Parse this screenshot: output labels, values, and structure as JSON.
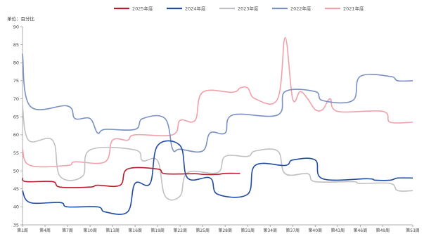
{
  "chart_data": {
    "type": "line",
    "unit_label": "单位：百分比",
    "legend_position": "top-center",
    "grid": false,
    "ylim": [
      35,
      90
    ],
    "yticks": [
      35,
      40,
      45,
      50,
      55,
      60,
      65,
      70,
      75,
      80,
      85,
      90
    ],
    "xlim": [
      1,
      53
    ],
    "xticks": [
      {
        "week": 1,
        "label": "第1周"
      },
      {
        "week": 4,
        "label": "第4周"
      },
      {
        "week": 7,
        "label": "第7周"
      },
      {
        "week": 10,
        "label": "第10周"
      },
      {
        "week": 13,
        "label": "第13周"
      },
      {
        "week": 16,
        "label": "第16周"
      },
      {
        "week": 19,
        "label": "第19周"
      },
      {
        "week": 22,
        "label": "第22周"
      },
      {
        "week": 25,
        "label": "第25周"
      },
      {
        "week": 28,
        "label": "第28周"
      },
      {
        "week": 31,
        "label": "第31周"
      },
      {
        "week": 34,
        "label": "第34周"
      },
      {
        "week": 37,
        "label": "第37周"
      },
      {
        "week": 40,
        "label": "第40周"
      },
      {
        "week": 43,
        "label": "第43周"
      },
      {
        "week": 46,
        "label": "第46周"
      },
      {
        "week": 49,
        "label": "第49周"
      },
      {
        "week": 53,
        "label": "第53周"
      }
    ],
    "series": [
      {
        "name": "2025年度",
        "color": "#b51d2a",
        "width": 1.6,
        "points": [
          [
            1,
            48
          ],
          [
            1.5,
            47
          ],
          [
            5,
            47
          ],
          [
            6,
            45.5
          ],
          [
            10,
            45.5
          ],
          [
            11,
            46
          ],
          [
            14,
            46
          ],
          [
            15,
            50.5
          ],
          [
            19,
            50.5
          ],
          [
            20,
            49.2
          ],
          [
            24,
            49.2
          ],
          [
            25,
            49
          ],
          [
            27,
            49
          ],
          [
            28,
            49.3
          ],
          [
            30,
            49.3
          ]
        ]
      },
      {
        "name": "2024年度",
        "color": "#1f4ba0",
        "width": 1.6,
        "points": [
          [
            1,
            44.5
          ],
          [
            2,
            41.2
          ],
          [
            6,
            41.2
          ],
          [
            7,
            40
          ],
          [
            11,
            40
          ],
          [
            12,
            38.6
          ],
          [
            15,
            38.6
          ],
          [
            16,
            46.5
          ],
          [
            18,
            46.5
          ],
          [
            19,
            57
          ],
          [
            22,
            57
          ],
          [
            23,
            48
          ],
          [
            26,
            48
          ],
          [
            27,
            43.5
          ],
          [
            31,
            43.5
          ],
          [
            32,
            51.5
          ],
          [
            36,
            51.5
          ],
          [
            37,
            53
          ],
          [
            40,
            53
          ],
          [
            41,
            47.8
          ],
          [
            47,
            47.8
          ],
          [
            48,
            47.4
          ],
          [
            50,
            47.4
          ],
          [
            51,
            48
          ],
          [
            53,
            48
          ]
        ]
      },
      {
        "name": "2023年度",
        "color": "#c0c0c4",
        "width": 1.6,
        "points": [
          [
            1,
            68
          ],
          [
            1.8,
            58.5
          ],
          [
            5,
            58.5
          ],
          [
            6,
            48.5
          ],
          [
            9,
            48.5
          ],
          [
            10,
            55.8
          ],
          [
            16,
            55.8
          ],
          [
            17,
            52.8
          ],
          [
            19,
            52.8
          ],
          [
            20,
            43
          ],
          [
            22,
            43
          ],
          [
            23,
            49.5
          ],
          [
            27,
            49.5
          ],
          [
            28,
            54
          ],
          [
            31,
            54
          ],
          [
            32,
            55.5
          ],
          [
            35,
            55.5
          ],
          [
            36,
            49.2
          ],
          [
            39,
            49.2
          ],
          [
            40,
            47
          ],
          [
            45,
            47
          ],
          [
            46,
            46.5
          ],
          [
            50,
            46.5
          ],
          [
            51,
            44.5
          ],
          [
            53,
            44.5
          ]
        ]
      },
      {
        "name": "2022年度",
        "color": "#7a8fc4",
        "width": 1.6,
        "points": [
          [
            1,
            82.5
          ],
          [
            2,
            68
          ],
          [
            7,
            68
          ],
          [
            8,
            64.5
          ],
          [
            10,
            64.5
          ],
          [
            11,
            60.5
          ],
          [
            12,
            61.5
          ],
          [
            16,
            61.5
          ],
          [
            17,
            64.5
          ],
          [
            20,
            64.5
          ],
          [
            21,
            56
          ],
          [
            22,
            56
          ],
          [
            25,
            55.5
          ],
          [
            26,
            60.5
          ],
          [
            28,
            60.5
          ],
          [
            29,
            65.5
          ],
          [
            35,
            65.5
          ],
          [
            36,
            72
          ],
          [
            40,
            72
          ],
          [
            41,
            69.5
          ],
          [
            45,
            69.5
          ],
          [
            46,
            76.2
          ],
          [
            50,
            76.2
          ],
          [
            51,
            75
          ],
          [
            53,
            75
          ]
        ]
      },
      {
        "name": "2021年度",
        "color": "#f2a0aa",
        "width": 1.6,
        "points": [
          [
            1,
            56
          ],
          [
            2,
            51.5
          ],
          [
            7,
            51.5
          ],
          [
            8,
            52.5
          ],
          [
            12,
            52.5
          ],
          [
            13,
            58.5
          ],
          [
            15,
            58.5
          ],
          [
            16,
            60
          ],
          [
            21,
            60
          ],
          [
            22,
            64
          ],
          [
            24,
            64
          ],
          [
            25,
            71.8
          ],
          [
            29,
            71.8
          ],
          [
            30,
            73
          ],
          [
            31,
            73
          ],
          [
            32,
            70
          ],
          [
            35,
            70
          ],
          [
            36,
            87
          ],
          [
            37,
            70
          ],
          [
            38,
            72
          ],
          [
            39,
            70
          ],
          [
            40,
            67
          ],
          [
            41,
            67
          ],
          [
            42,
            70
          ],
          [
            43,
            66.5
          ],
          [
            49,
            66.5
          ],
          [
            50,
            63.5
          ],
          [
            53,
            63.5
          ]
        ]
      }
    ]
  }
}
